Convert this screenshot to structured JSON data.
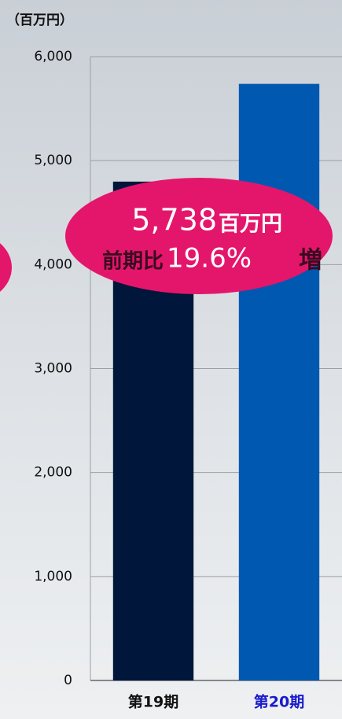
{
  "chart_data": {
    "type": "bar",
    "unit_label": "（百万円）",
    "categories": [
      "第19期",
      "第20期"
    ],
    "values": [
      4798,
      5738
    ],
    "colors": [
      "#00163a",
      "#0058b0"
    ],
    "label_colors": [
      "#111111",
      "#1a1acc"
    ],
    "ylim": [
      0,
      6000
    ],
    "yticks": [
      0,
      {
        "value": 1000,
        "label": "1,000"
      },
      {
        "value": 2000,
        "label": "2,000"
      },
      {
        "value": 3000,
        "label": "3,000"
      },
      {
        "value": 4000,
        "label": "4,000"
      },
      {
        "value": 5000,
        "label": "5,000"
      },
      {
        "value": 6000,
        "label": "6,000"
      }
    ],
    "grid": true,
    "annotation": {
      "amount": "5,738",
      "unit": "百万円",
      "prefix": "前期比",
      "change": "19.6%",
      "suffix": "増"
    }
  }
}
